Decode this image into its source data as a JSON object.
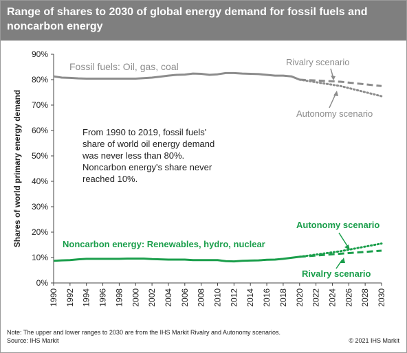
{
  "title": "Range of shares to 2030 of global energy demand for fossil fuels and noncarbon energy",
  "note": "Note: The upper and lower ranges to 2030 are from the IHS Markit Rivalry and Autonomy scenarios.",
  "source": "Source: IHS Markit",
  "copyright": "© 2021 IHS Markit",
  "colors": {
    "fossil": "#8c8c8c",
    "noncarbon": "#1a9e4b",
    "title_bg": "#7f7f7f"
  },
  "chart_data": {
    "type": "line",
    "ylabel": "Shares of world primary energy demand",
    "xlabel": "",
    "ylim": [
      0,
      90
    ],
    "xlim": [
      1990,
      2030
    ],
    "y_ticks": [
      "0%",
      "10%",
      "20%",
      "30%",
      "40%",
      "50%",
      "60%",
      "70%",
      "80%",
      "90%"
    ],
    "x_ticks": [
      "1990",
      "1992",
      "1994",
      "1996",
      "1998",
      "2000",
      "2002",
      "2004",
      "2006",
      "2008",
      "2010",
      "2012",
      "2014",
      "2016",
      "2018",
      "2020",
      "2022",
      "2024",
      "2026",
      "2028",
      "2030"
    ],
    "grid": false,
    "annotation": "From 1990 to 2019, fossil fuels' share of world oil energy demand was never less than 80%. Noncarbon energy's share never reached 10%.",
    "annotation_lines": [
      "From 1990 to 2019, fossil fuels'",
      "share of world oil energy demand",
      "was never less than 80%.",
      "Noncarbon energy's share never",
      "reached 10%."
    ],
    "series": [
      {
        "name": "Fossil fuels: Oil, gas, coal",
        "style": "solid",
        "color": "#8c8c8c",
        "x": [
          1990,
          1991,
          1992,
          1993,
          1994,
          1995,
          1996,
          1997,
          1998,
          1999,
          2000,
          2001,
          2002,
          2003,
          2004,
          2005,
          2006,
          2007,
          2008,
          2009,
          2010,
          2011,
          2012,
          2013,
          2014,
          2015,
          2016,
          2017,
          2018,
          2019,
          2020
        ],
        "y": [
          81.3,
          80.8,
          80.7,
          80.5,
          80.4,
          80.4,
          80.4,
          80.4,
          80.4,
          80.4,
          80.4,
          80.6,
          80.8,
          81.2,
          81.6,
          81.9,
          82.0,
          82.4,
          82.3,
          81.9,
          82.1,
          82.6,
          82.6,
          82.4,
          82.3,
          82.2,
          81.9,
          81.6,
          81.6,
          81.3,
          80.0
        ]
      },
      {
        "name": "Rivalry scenario",
        "style": "dashed",
        "color": "#8c8c8c",
        "x": [
          2020,
          2025,
          2030
        ],
        "y": [
          80.0,
          79.2,
          77.5
        ]
      },
      {
        "name": "Autonomy scenario",
        "style": "dotted",
        "color": "#8c8c8c",
        "x": [
          2020,
          2025,
          2030
        ],
        "y": [
          80.0,
          77.5,
          73.5
        ]
      },
      {
        "name": "Noncarbon energy: Renewables, hydro, nuclear",
        "style": "solid",
        "color": "#1a9e4b",
        "x": [
          1990,
          1991,
          1992,
          1993,
          1994,
          1995,
          1996,
          1997,
          1998,
          1999,
          2000,
          2001,
          2002,
          2003,
          2004,
          2005,
          2006,
          2007,
          2008,
          2009,
          2010,
          2011,
          2012,
          2013,
          2014,
          2015,
          2016,
          2017,
          2018,
          2019,
          2020
        ],
        "y": [
          8.7,
          8.9,
          9.0,
          9.3,
          9.5,
          9.5,
          9.5,
          9.5,
          9.5,
          9.6,
          9.6,
          9.6,
          9.4,
          9.3,
          9.2,
          9.2,
          9.2,
          9.0,
          9.0,
          9.0,
          9.0,
          8.6,
          8.5,
          8.7,
          8.8,
          8.9,
          9.1,
          9.2,
          9.5,
          9.9,
          10.3
        ]
      },
      {
        "name": "Autonomy scenario",
        "style": "dotted",
        "color": "#1a9e4b",
        "x": [
          2020,
          2025,
          2030
        ],
        "y": [
          10.3,
          12.5,
          15.5
        ]
      },
      {
        "name": "Rivalry scenario",
        "style": "dashed",
        "color": "#1a9e4b",
        "x": [
          2020,
          2025,
          2030
        ],
        "y": [
          10.3,
          11.5,
          12.7
        ]
      }
    ],
    "labels": {
      "fossil": "Fossil fuels: Oil, gas, coal",
      "fossil_rivalry": "Rivalry scenario",
      "fossil_autonomy": "Autonomy scenario",
      "noncarbon": "Noncarbon energy: Renewables, hydro, nuclear",
      "noncarbon_autonomy": "Autonomy scenario",
      "noncarbon_rivalry": "Rivalry scenario"
    }
  }
}
